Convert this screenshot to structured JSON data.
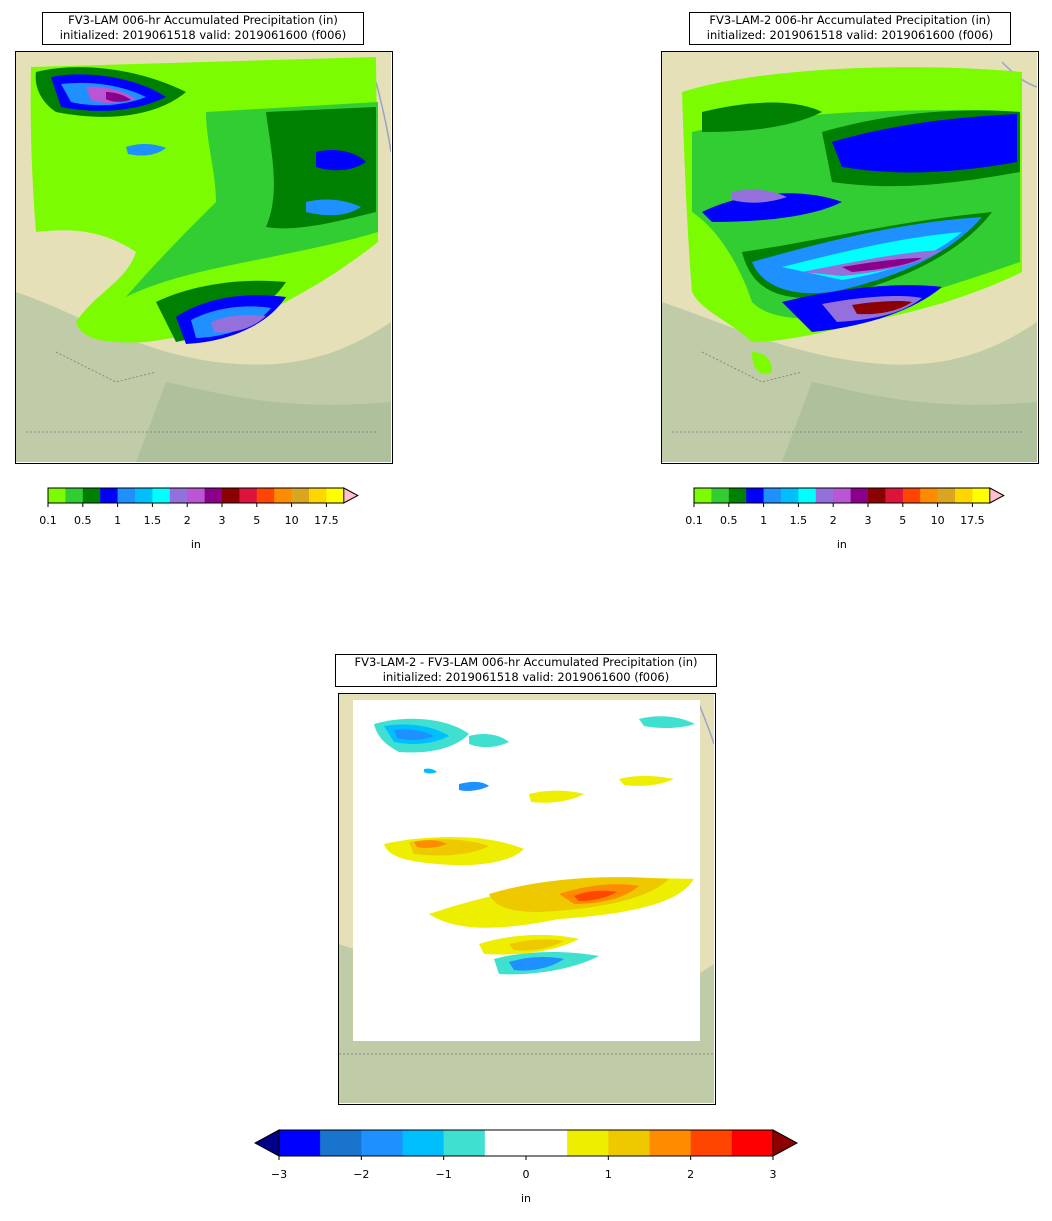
{
  "panels": [
    {
      "id": "fv3lam",
      "title_line1": "FV3-LAM 006-hr Accumulated Precipitation (in)",
      "title_line2": "initialized: 2019061518 valid: 2019061600 (f006)"
    },
    {
      "id": "fv3lam2",
      "title_line1": "FV3-LAM-2 006-hr Accumulated Precipitation (in)",
      "title_line2": "initialized: 2019061518 valid: 2019061600 (f006)"
    },
    {
      "id": "diff",
      "title_line1": "FV3-LAM-2 - FV3-LAM 006-hr Accumulated Precipitation (in)",
      "title_line2": "initialized: 2019061518 valid: 2019061600 (f006)"
    }
  ],
  "precip_colorbar": {
    "colors": [
      "#7cfc00",
      "#32cd32",
      "#008000",
      "#0000ff",
      "#1e90ff",
      "#00bfff",
      "#00ffff",
      "#9370db",
      "#ba55d3",
      "#8b008b",
      "#8b0000",
      "#dc143c",
      "#ff4500",
      "#ff8c00",
      "#daa520",
      "#ffd700",
      "#ffff00"
    ],
    "extend_color": "#ffc0cb",
    "tick_labels": [
      "0.1",
      "0.5",
      "1",
      "1.5",
      "2",
      "3",
      "5",
      "10",
      "17.5"
    ],
    "unit": "in"
  },
  "diff_colorbar": {
    "colors": [
      "#0000ff",
      "#1874cd",
      "#1e90ff",
      "#00bfff",
      "#40e0d0",
      "#ffffff",
      "#ffffff",
      "#eeee00",
      "#eec900",
      "#ff8c00",
      "#ff4500",
      "#ff0000"
    ],
    "under_color": "#00008b",
    "over_color": "#8b0000",
    "tick_labels": [
      "−3",
      "−2",
      "−1",
      "0",
      "1",
      "2",
      "3"
    ],
    "unit": "in"
  },
  "chart_data": [
    {
      "type": "heatmap",
      "title": "FV3-LAM 006-hr Accumulated Precipitation (in)\ninitialized: 2019061518 valid: 2019061600 (f006)",
      "colorbar_levels": [
        0.1,
        0.5,
        1,
        1.5,
        2,
        3,
        5,
        10,
        17.5
      ],
      "colorbar_unit": "in",
      "colorbar_extend": "max"
    },
    {
      "type": "heatmap",
      "title": "FV3-LAM-2 006-hr Accumulated Precipitation (in)\ninitialized: 2019061518 valid: 2019061600 (f006)",
      "colorbar_levels": [
        0.1,
        0.5,
        1,
        1.5,
        2,
        3,
        5,
        10,
        17.5
      ],
      "colorbar_unit": "in",
      "colorbar_extend": "max"
    },
    {
      "type": "heatmap",
      "title": "FV3-LAM-2 - FV3-LAM 006-hr Accumulated Precipitation (in)\ninitialized: 2019061518 valid: 2019061600 (f006)",
      "colorbar_levels": [
        -3,
        -2,
        -1,
        0,
        1,
        2,
        3
      ],
      "colorbar_unit": "in",
      "colorbar_extend": "both"
    }
  ]
}
